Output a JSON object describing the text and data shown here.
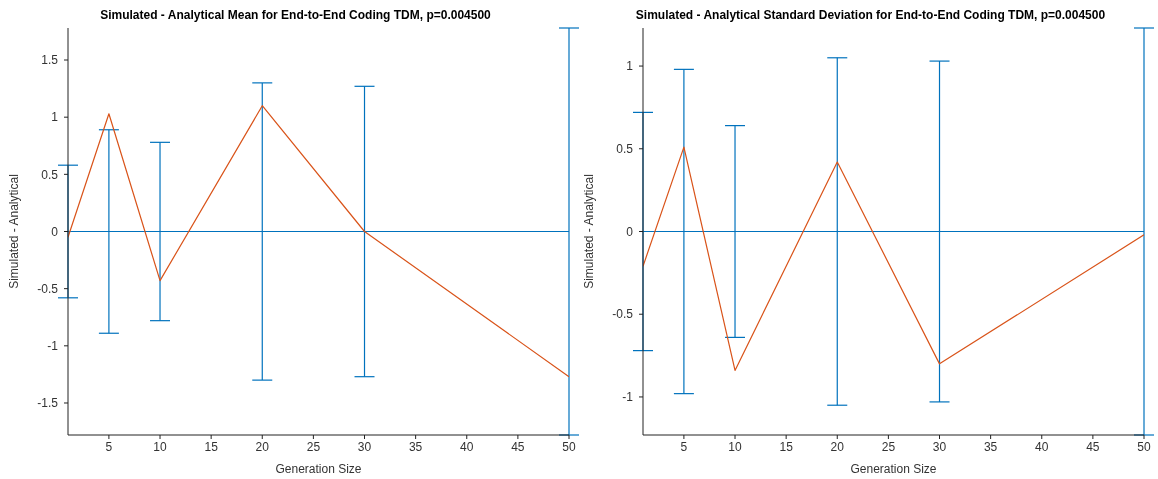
{
  "chart_data": [
    {
      "type": "line",
      "title": "Simulated - Analytical Mean for End-to-End Coding TDM, p=0.004500",
      "xlabel": "Generation Size",
      "ylabel": "Simulated - Analytical",
      "x": [
        1,
        5,
        10,
        20,
        30,
        50
      ],
      "xlim": [
        1,
        50
      ],
      "xticks": [
        5,
        10,
        15,
        20,
        25,
        30,
        35,
        40,
        45,
        50
      ],
      "ylim": [
        -1.78,
        1.78
      ],
      "yticks": [
        -1.5,
        -1,
        -0.5,
        0,
        0.5,
        1,
        1.5
      ],
      "marker": "none",
      "series": [
        {
          "color": "#0072bd",
          "values": [
            0,
            0,
            0,
            0,
            0,
            0
          ],
          "errors": [
            0.58,
            0.89,
            0.78,
            1.3,
            1.27,
            1.78
          ]
        },
        {
          "color": "#d95319",
          "values": [
            -0.05,
            1.03,
            -0.43,
            1.1,
            0,
            -1.27
          ]
        }
      ]
    },
    {
      "type": "line",
      "title": "Simulated - Analytical Standard Deviation for End-to-End Coding TDM, p=0.004500",
      "xlabel": "Generation Size",
      "ylabel": "Simulated - Analytical",
      "x": [
        1,
        5,
        10,
        20,
        30,
        50
      ],
      "xlim": [
        1,
        50
      ],
      "xticks": [
        5,
        10,
        15,
        20,
        25,
        30,
        35,
        40,
        45,
        50
      ],
      "ylim": [
        -1.23,
        1.23
      ],
      "yticks": [
        -1,
        -0.5,
        0,
        0.5,
        1
      ],
      "marker": "none",
      "series": [
        {
          "color": "#0072bd",
          "values": [
            0,
            0,
            0,
            0,
            0,
            0
          ],
          "errors": [
            0.72,
            0.98,
            0.64,
            1.05,
            1.03,
            1.23
          ]
        },
        {
          "color": "#d95319",
          "values": [
            -0.21,
            0.51,
            -0.84,
            0.42,
            -0.8,
            -0.02
          ]
        }
      ]
    }
  ]
}
